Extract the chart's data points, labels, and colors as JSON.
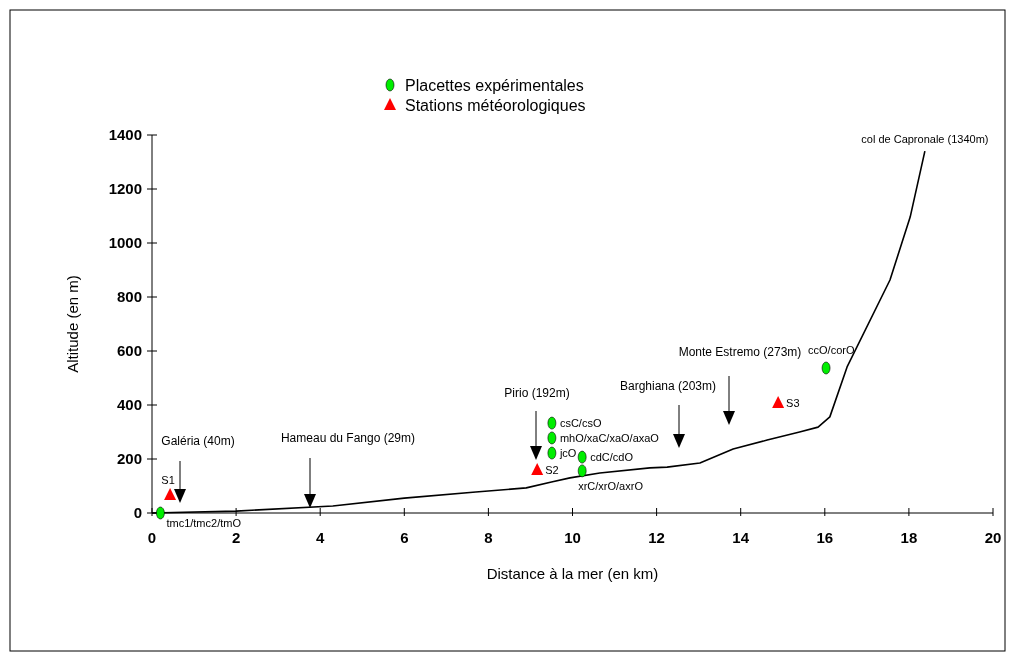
{
  "chart_data": {
    "type": "line",
    "xlabel": "Distance à la mer (en km)",
    "ylabel": "Altitude (en m)",
    "xlim": [
      0,
      20
    ],
    "xticks": [
      0,
      2,
      4,
      6,
      8,
      10,
      12,
      14,
      16,
      18,
      20
    ],
    "ylim": [
      0,
      1400
    ],
    "yticks": [
      0,
      200,
      400,
      600,
      800,
      1000,
      1200,
      1400
    ],
    "grid": false,
    "legend": "top",
    "series": [
      {
        "color": "#000000",
        "marker": "none",
        "x": [
          0,
          2.0,
          4.3,
          6.0,
          7.7,
          8.9,
          9.5,
          9.94,
          10.65,
          11.84,
          12.25,
          13.03,
          13.82,
          14.63,
          15.4,
          15.84,
          16.12,
          16.53,
          17.55,
          18.03,
          18.38
        ],
        "values": [
          0,
          7,
          26,
          55,
          78,
          93,
          115,
          130,
          148,
          167,
          170,
          185,
          237,
          270,
          300,
          318,
          356,
          541,
          863,
          1096,
          1340
        ],
        "value_labels": [
          null,
          null,
          null,
          null,
          null,
          null,
          null,
          null,
          null,
          null,
          null,
          null,
          null,
          null,
          null,
          null,
          null,
          null,
          null,
          null,
          "col de Capronale (1340m)"
        ]
      },
      {
        "type": "scatter",
        "name": "Placettes expérimentales",
        "color": "#00ee00",
        "marker": "circle",
        "x": [
          0.2,
          9.51,
          9.51,
          9.51,
          10.23,
          10.23,
          16.03
        ],
        "values": [
          0,
          333,
          278,
          222,
          207,
          156,
          537
        ],
        "value_labels": [
          "tmc1/tmc2/tmO",
          "csC/csO",
          "mhO/xaC/xaO/axaO",
          "jcO",
          "cdC/cdO",
          "xrC/xrO/axrO",
          "ccO/corO"
        ]
      },
      {
        "type": "scatter",
        "name": "Stations météorologiques",
        "color": "#ff0000",
        "marker": "triangle",
        "x": [
          0.43,
          9.16,
          14.89
        ],
        "values": [
          67,
          159,
          407
        ],
        "value_labels": [
          "S1",
          "S2",
          "S3"
        ]
      }
    ],
    "annotations": [
      "Galéria (40m)",
      "Hameau du Fango (29m)",
      "Pirio (192m)",
      "Barghiana (203m)",
      "Monte Estremo (273m)"
    ]
  }
}
